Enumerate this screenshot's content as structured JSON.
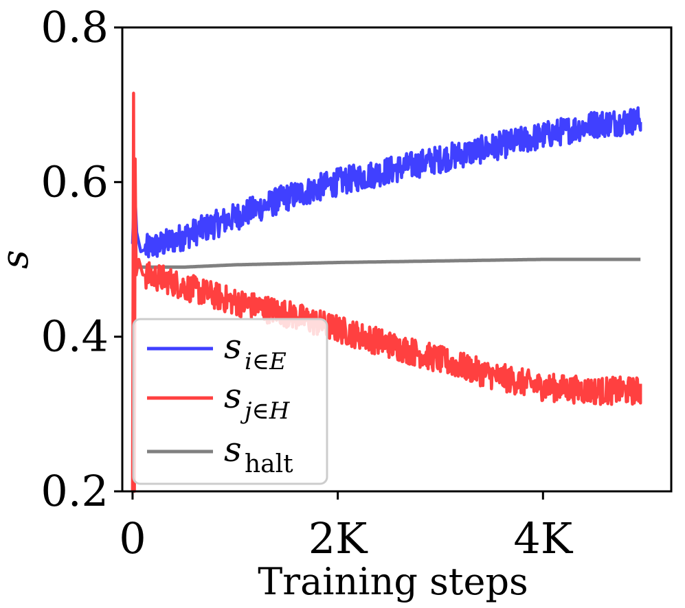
{
  "chart_data": {
    "type": "line",
    "title": "",
    "xlabel": "Training steps",
    "ylabel": "s",
    "xlim": [
      -100,
      5250
    ],
    "ylim": [
      0.2,
      0.8
    ],
    "xticks": [
      0,
      2000,
      4000
    ],
    "xtick_labels": [
      "0",
      "2K",
      "4K"
    ],
    "yticks": [
      0.2,
      0.4,
      0.6,
      0.8
    ],
    "ytick_labels": [
      "0.2",
      "0.4",
      "0.6",
      "0.8"
    ],
    "grid": false,
    "legend_position": "bottom-left",
    "series": [
      {
        "name": "s_{i∈E}",
        "legend_main": "s",
        "legend_sub": "i∈E",
        "color": "#4040ff",
        "noise": 0.018,
        "x": [
          0,
          20,
          40,
          80,
          150,
          300,
          500,
          800,
          1000,
          1500,
          2000,
          2500,
          3000,
          3500,
          4000,
          4500,
          4950
        ],
        "y": [
          0.52,
          0.595,
          0.535,
          0.51,
          0.515,
          0.52,
          0.53,
          0.545,
          0.555,
          0.58,
          0.6,
          0.615,
          0.63,
          0.645,
          0.66,
          0.675,
          0.68
        ]
      },
      {
        "name": "s_{j∈H}",
        "legend_main": "s",
        "legend_sub": "j∈H",
        "color": "#ff4040",
        "noise": 0.018,
        "x": [
          0,
          10,
          18,
          25,
          35,
          60,
          100,
          300,
          500,
          1000,
          1500,
          2000,
          2500,
          3000,
          3500,
          4000,
          4500,
          4950
        ],
        "y": [
          0.2,
          0.715,
          0.2,
          0.63,
          0.48,
          0.5,
          0.48,
          0.475,
          0.465,
          0.445,
          0.43,
          0.41,
          0.39,
          0.37,
          0.35,
          0.335,
          0.33,
          0.33
        ]
      },
      {
        "name": "s_halt",
        "legend_main": "s",
        "legend_sub": "halt",
        "color": "#808080",
        "noise": 0,
        "x": [
          0,
          100,
          500,
          1000,
          2000,
          3000,
          4000,
          4950
        ],
        "y": [
          0.49,
          0.49,
          0.49,
          0.493,
          0.496,
          0.498,
          0.5,
          0.5
        ]
      }
    ]
  }
}
